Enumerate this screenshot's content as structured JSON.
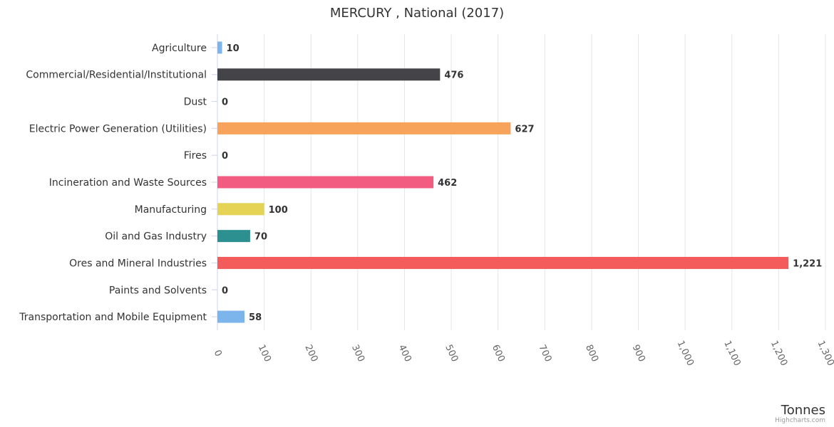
{
  "chart_data": {
    "type": "bar",
    "orientation": "horizontal",
    "title": "MERCURY , National (2017)",
    "xlabel": "Tonnes",
    "ylabel": "",
    "xlim": [
      0,
      1300
    ],
    "tick_step": 100,
    "ticks": [
      "0",
      "100",
      "200",
      "300",
      "400",
      "500",
      "600",
      "700",
      "800",
      "900",
      "1,000",
      "1,100",
      "1,200",
      "1,300"
    ],
    "grid": true,
    "legend": "none",
    "categories": [
      "Agriculture",
      "Commercial/Residential/Institutional",
      "Dust",
      "Electric Power Generation (Utilities)",
      "Fires",
      "Incineration and Waste Sources",
      "Manufacturing",
      "Oil and Gas Industry",
      "Ores and Mineral Industries",
      "Paints and Solvents",
      "Transportation and Mobile Equipment"
    ],
    "values": [
      10,
      476,
      0,
      627,
      0,
      462,
      100,
      70,
      1221,
      0,
      58
    ],
    "value_labels": [
      "10",
      "476",
      "0",
      "627",
      "0",
      "462",
      "100",
      "70",
      "1,221",
      "0",
      "58"
    ],
    "colors": [
      "#7cb5ec",
      "#434348",
      "#90ed7d",
      "#f7a35c",
      "#8085e9",
      "#f15c80",
      "#e4d354",
      "#2b908f",
      "#f45b5b",
      "#91e8e1",
      "#7cb5ec"
    ]
  },
  "credits": "Highcharts.com"
}
